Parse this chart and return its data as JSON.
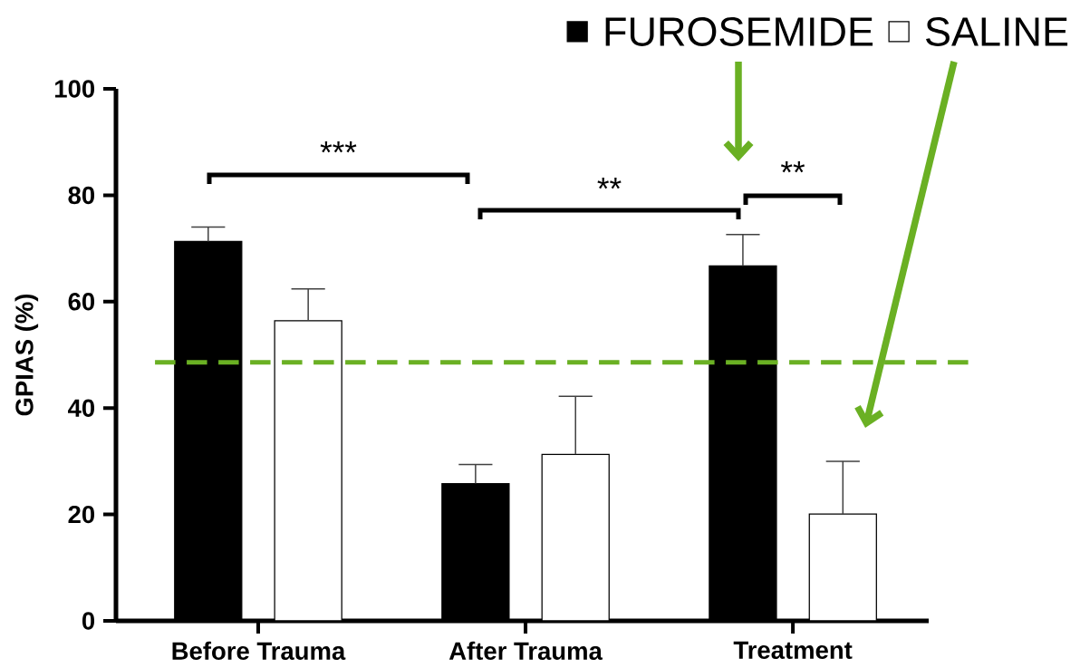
{
  "chart_data": {
    "type": "bar",
    "ylabel": "GPIAS (%)",
    "categories": [
      "Before Trauma",
      "After Trauma",
      "Treatment"
    ],
    "series": [
      {
        "name": "FUROSEMIDE",
        "color": "#000000",
        "values": [
          71.3,
          25.8,
          66.7
        ],
        "errors": [
          [
            71.3,
            74.0
          ],
          [
            25.8,
            29.4
          ],
          [
            66.7,
            72.6
          ]
        ]
      },
      {
        "name": "SALINE",
        "color": "#ffffff",
        "values": [
          56.4,
          31.3,
          20.1
        ],
        "errors": [
          [
            56.4,
            62.4
          ],
          [
            31.3,
            42.2
          ],
          [
            20.1,
            30.0
          ]
        ]
      }
    ],
    "ylim": [
      0,
      100
    ],
    "yticks": [
      0,
      20,
      40,
      60,
      80,
      100
    ],
    "ref_lines": [
      {
        "axis": "y",
        "value": 48.6,
        "color": "#6ab023",
        "line_style": "dashed"
      }
    ],
    "annotations": [
      "***",
      "**",
      "**"
    ],
    "legend": "top right"
  }
}
